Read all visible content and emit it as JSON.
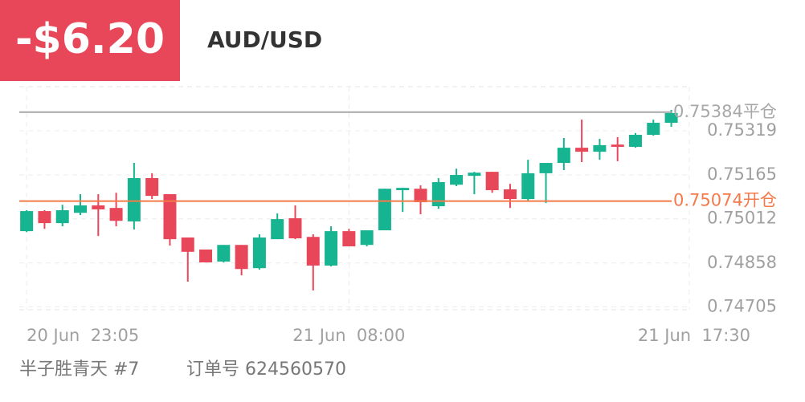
{
  "chart_data": {
    "type": "candlestick",
    "pnl": "-$6.20",
    "title": "AUD/USD",
    "footer_name": "半子胜青天 #7",
    "footer_order": "订单号 624560570",
    "open": [
      0.74969,
      0.75039,
      0.74997,
      0.75033,
      0.75059,
      0.7505,
      0.75003,
      0.75154,
      0.75098,
      0.74947,
      0.74905,
      0.74863,
      0.74921,
      0.7484,
      0.74941,
      0.75014,
      0.74949,
      0.74849,
      0.74969,
      0.74921,
      0.74972,
      0.75112,
      0.75117,
      0.75056,
      0.75131,
      0.75162,
      0.75176,
      0.75115,
      0.75081,
      0.75171,
      0.75207,
      0.7526,
      0.75246,
      0.75271,
      0.75263,
      0.75305,
      0.75347
    ],
    "high": [
      0.75042,
      0.75042,
      0.75061,
      0.75098,
      0.75098,
      0.75103,
      0.75207,
      0.75171,
      0.75098,
      0.74947,
      0.74905,
      0.74921,
      0.74921,
      0.74958,
      0.75031,
      0.75059,
      0.74958,
      0.74986,
      0.74977,
      0.74972,
      0.75117,
      0.7512,
      0.75129,
      0.75154,
      0.75187,
      0.75176,
      0.75176,
      0.75134,
      0.75218,
      0.75207,
      0.75294,
      0.75358,
      0.75291,
      0.75297,
      0.75311,
      0.75358,
      0.75392
    ],
    "low": [
      0.74966,
      0.74977,
      0.74986,
      0.75025,
      0.74952,
      0.74986,
      0.74975,
      0.75081,
      0.74919,
      0.74793,
      0.7486,
      0.7486,
      0.74815,
      0.74835,
      0.74941,
      0.74941,
      0.74762,
      0.74846,
      0.74916,
      0.74916,
      0.74972,
      0.75036,
      0.75028,
      0.75047,
      0.75126,
      0.75098,
      0.75103,
      0.7505,
      0.75075,
      0.75067,
      0.75182,
      0.7521,
      0.75218,
      0.75213,
      0.7526,
      0.75302,
      0.75333
    ],
    "close": [
      0.75039,
      0.74997,
      0.75042,
      0.75059,
      0.75045,
      0.75005,
      0.75154,
      0.75092,
      0.74941,
      0.74897,
      0.7486,
      0.74921,
      0.74837,
      0.74947,
      0.75011,
      0.74944,
      0.74849,
      0.74969,
      0.74916,
      0.74972,
      0.75117,
      0.7512,
      0.7507,
      0.7514,
      0.75165,
      0.75173,
      0.75112,
      0.75081,
      0.75171,
      0.75207,
      0.7526,
      0.75246,
      0.75269,
      0.75263,
      0.75305,
      0.75347,
      0.75381
    ],
    "up_color": "#17b491",
    "down_color": "#e8475a",
    "ylim": [
      0.74695,
      0.75473
    ],
    "yticks": [
      0.75319,
      0.75165,
      0.75012,
      0.74858,
      0.74705
    ],
    "xlim": [
      -0.5,
      37.5
    ],
    "xticks": [
      {
        "value": 0,
        "label": "20 Jun  23:05"
      },
      {
        "value": 18,
        "label": "21 Jun  08:00"
      },
      {
        "value": 37,
        "label": "21 Jun  17:30"
      }
    ],
    "close_line": {
      "value": 0.75384,
      "label": "0.75384平仓",
      "color": "#a8a8a8"
    },
    "open_line": {
      "value": 0.75074,
      "label": "0.75074开仓",
      "color": "#f47a4a"
    },
    "grid": true
  }
}
